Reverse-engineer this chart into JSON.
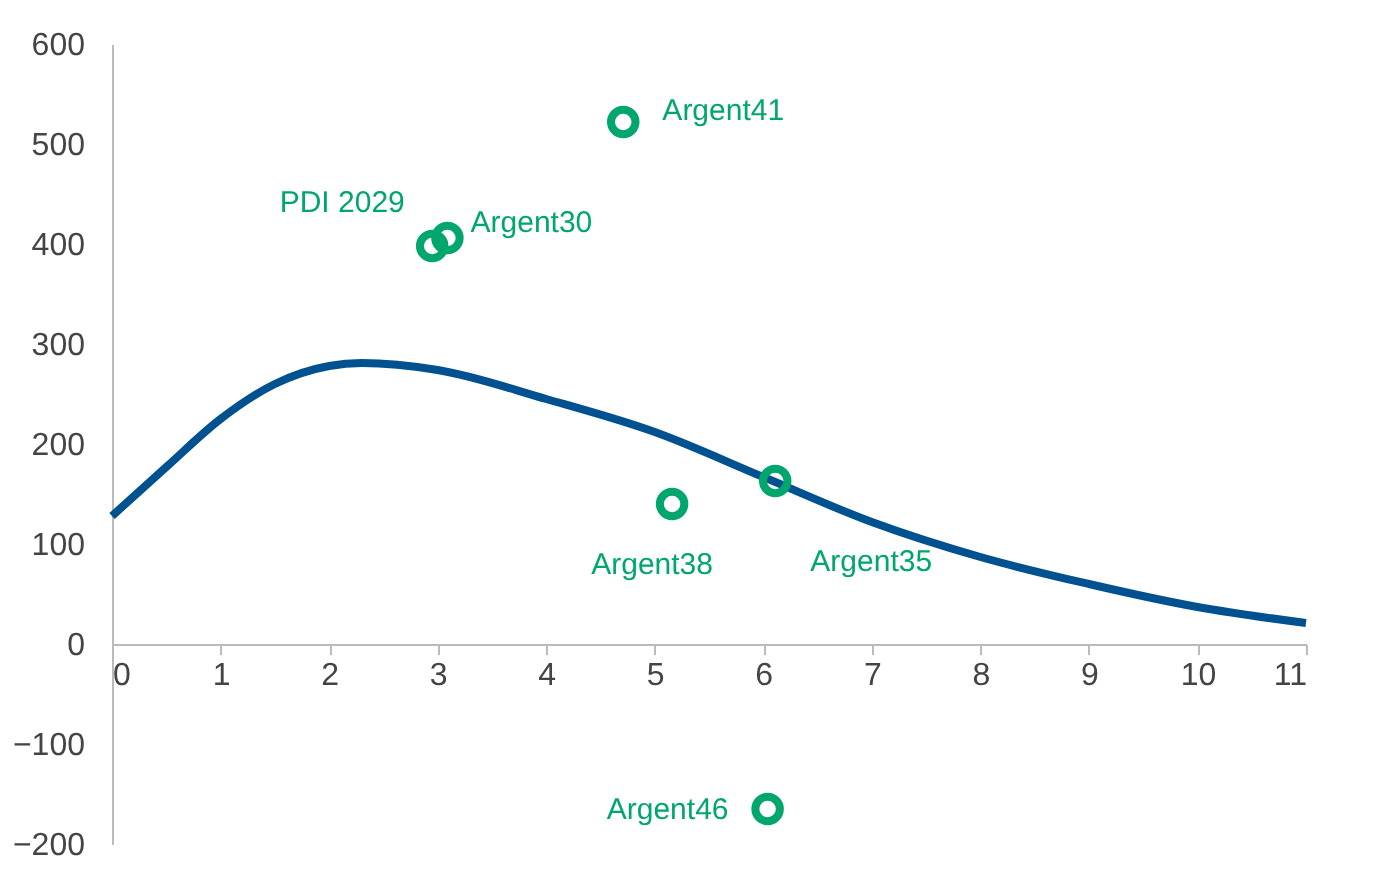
{
  "chart_data": {
    "type": "line",
    "xlim": [
      0,
      11
    ],
    "xticks": [
      0,
      1,
      2,
      3,
      4,
      5,
      6,
      7,
      8,
      9,
      10,
      11
    ],
    "ylim": [
      -200,
      600
    ],
    "yticks": [
      -200,
      -100,
      0,
      100,
      200,
      300,
      400,
      500,
      600
    ],
    "grid": false,
    "series": [
      {
        "color": "#00518f",
        "x": [
          0,
          0.5,
          1,
          1.5,
          2,
          2.3,
          3,
          4,
          5,
          6,
          7,
          8,
          9,
          10,
          11
        ],
        "values": [
          128,
          177,
          225,
          260,
          278,
          281,
          274,
          245,
          212,
          167,
          122,
          87,
          60,
          37,
          21
        ]
      },
      {
        "type": "scatter",
        "color": "#00a76d",
        "marker": "circle",
        "x": [
          2.95,
          3.09,
          4.71,
          5.16,
          6.11,
          6.04
        ],
        "values": [
          398,
          406,
          522,
          140,
          163,
          -165
        ],
        "value_labels": [
          "PDI 2029",
          "Argent30",
          "Argent41",
          "Argent38",
          "Argent35",
          "Argent46"
        ]
      }
    ]
  }
}
